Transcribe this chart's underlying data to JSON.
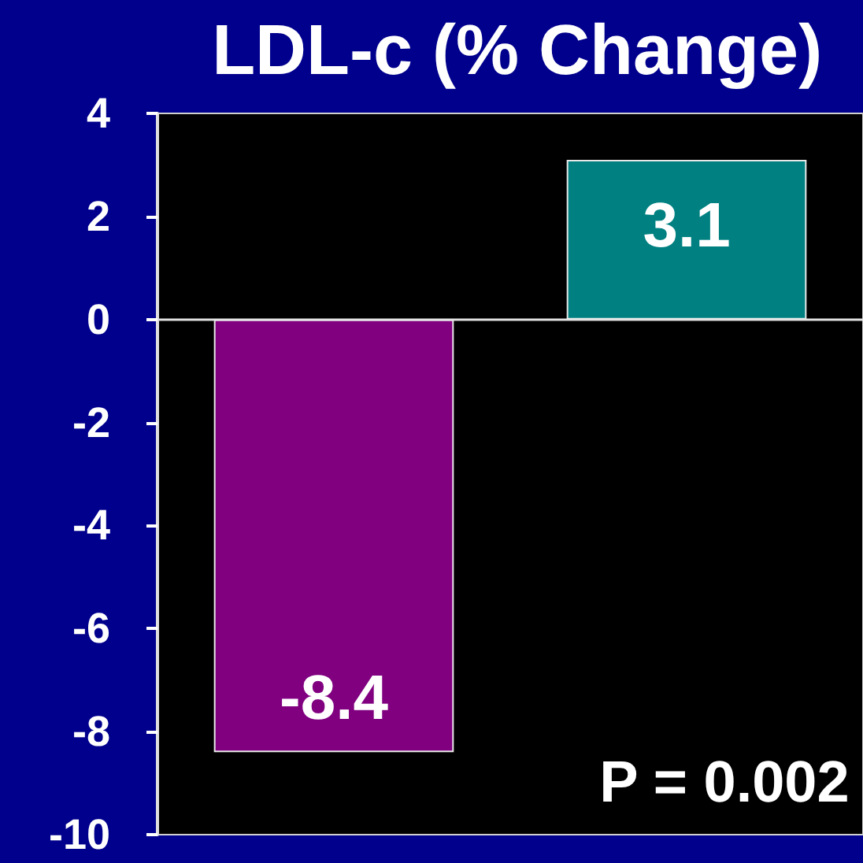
{
  "chart_data": {
    "type": "bar",
    "title": "LDL-c (% Change)",
    "categories": [
      null,
      null
    ],
    "values": [
      -8.4,
      3.1
    ],
    "colors": [
      "#800080",
      "#008080"
    ],
    "ylim": [
      -10,
      4
    ],
    "yticks": [
      4,
      2,
      0,
      -2,
      -4,
      -6,
      -8,
      -10
    ],
    "data_labels": true,
    "tick_labels": "y",
    "annotations": [
      "P = 0.002"
    ]
  }
}
